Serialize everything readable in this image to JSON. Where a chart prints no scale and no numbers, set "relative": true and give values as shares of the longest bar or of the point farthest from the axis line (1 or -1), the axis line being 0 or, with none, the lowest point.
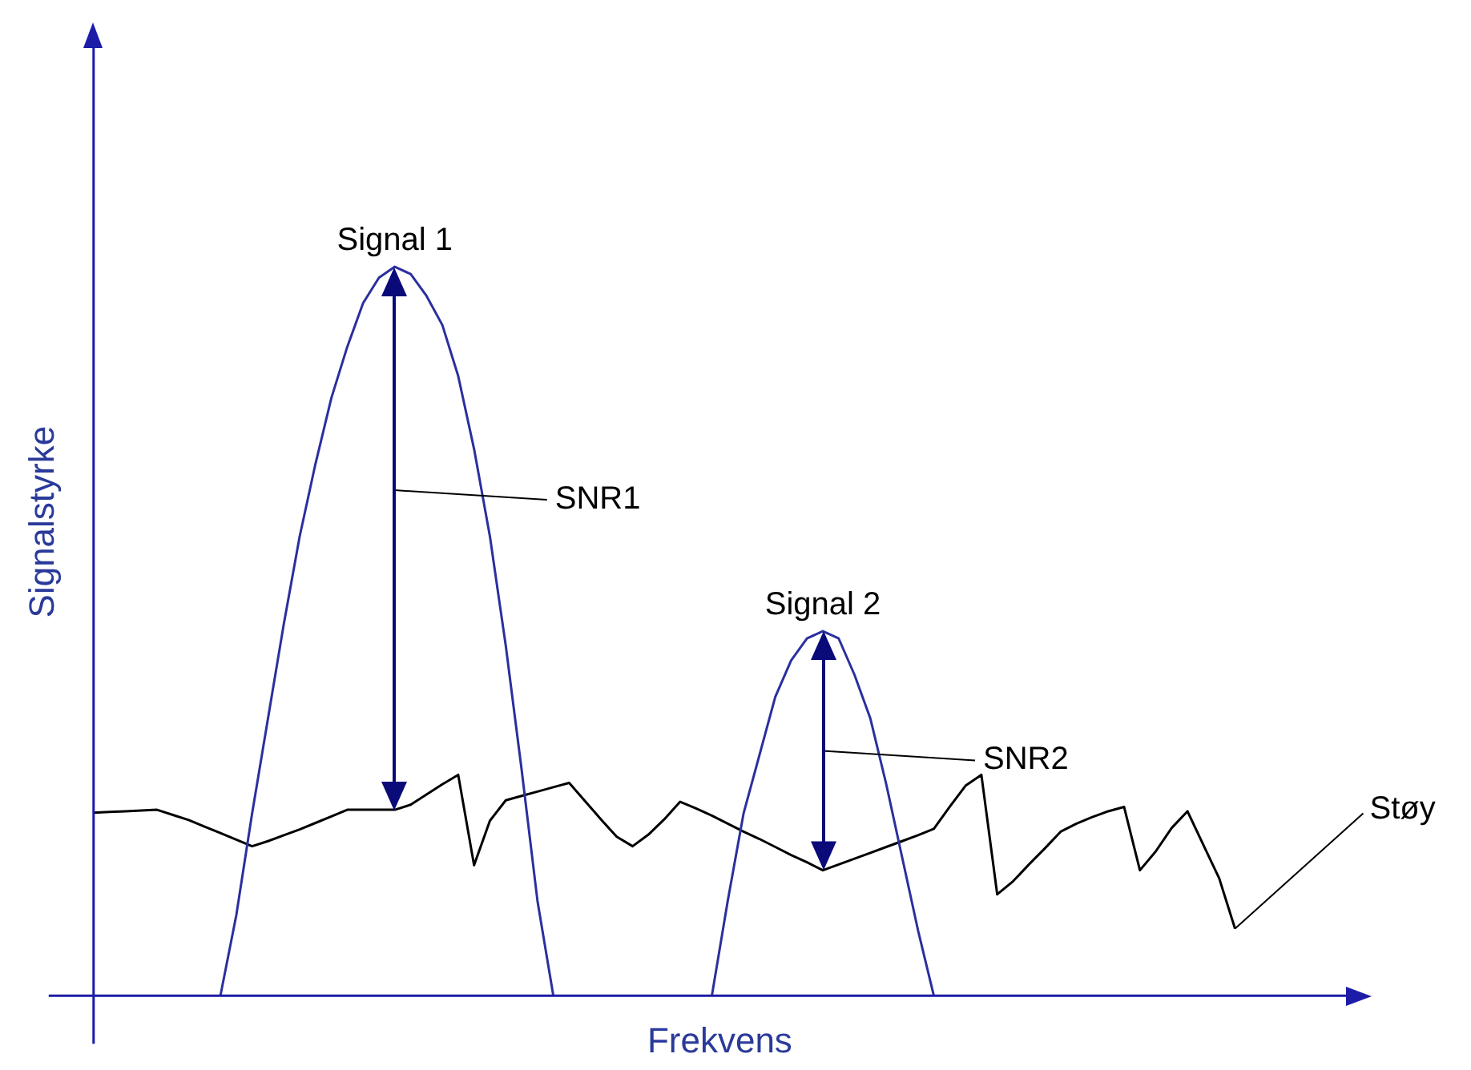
{
  "chart_data": {
    "type": "line",
    "relative": true,
    "xlabel": "Frekvens",
    "ylabel": "Signalstyrke",
    "legend": false,
    "grid": false,
    "marker": "none",
    "line_style": "solid",
    "categories": [
      null,
      null,
      null,
      null,
      null,
      null,
      null,
      null,
      null,
      null,
      null,
      null,
      null,
      null,
      null,
      null,
      null,
      null,
      null,
      null,
      null,
      null,
      null,
      null,
      null,
      null,
      null,
      null,
      null,
      null,
      null,
      null,
      null,
      null,
      null,
      null,
      null,
      null,
      null,
      null,
      null,
      null,
      null,
      null,
      null,
      null,
      null,
      null,
      null,
      null,
      null,
      null,
      null,
      null,
      null,
      null,
      null,
      null,
      null,
      null,
      null,
      null,
      null,
      null,
      null,
      null,
      null,
      null,
      null,
      null,
      null,
      null,
      null,
      null,
      null,
      null,
      null,
      null,
      null,
      null
    ],
    "series": [
      {
        "color": "#2b2f9e",
        "values": [
          null,
          null,
          null,
          null,
          null,
          null,
          null,
          null,
          0,
          0.11,
          0.25,
          0.38,
          0.51,
          0.63,
          0.73,
          0.82,
          0.89,
          0.95,
          0.985,
          1,
          0.99,
          0.96,
          0.92,
          0.85,
          0.75,
          0.63,
          0.48,
          0.31,
          0.13,
          0,
          null,
          null,
          null,
          null,
          null,
          null,
          null,
          null,
          null,
          null,
          null,
          null,
          null,
          null,
          null,
          null,
          null,
          null,
          null,
          null,
          null,
          null,
          null,
          null,
          null,
          null,
          null,
          null,
          null,
          null,
          null,
          null,
          null,
          null,
          null,
          null,
          null,
          null,
          null,
          null,
          null,
          null,
          null,
          null,
          null,
          null,
          null,
          null,
          null,
          null
        ]
      },
      {
        "color": "#2b2f9e",
        "values": [
          null,
          null,
          null,
          null,
          null,
          null,
          null,
          null,
          null,
          null,
          null,
          null,
          null,
          null,
          null,
          null,
          null,
          null,
          null,
          null,
          null,
          null,
          null,
          null,
          null,
          null,
          null,
          null,
          null,
          null,
          null,
          null,
          null,
          null,
          null,
          null,
          null,
          null,
          null,
          0,
          0.13,
          0.25,
          0.33,
          0.41,
          0.46,
          0.49,
          0.5,
          0.49,
          0.44,
          0.38,
          0.29,
          0.19,
          0.09,
          0,
          null,
          null,
          null,
          null,
          null,
          null,
          null,
          null,
          null,
          null,
          null,
          null,
          null,
          null,
          null,
          null,
          null,
          null,
          null,
          null,
          null,
          null,
          null,
          null,
          null,
          null
        ]
      },
      {
        "color": "#000000",
        "values": [
          0.251,
          0.252,
          0.253,
          0.254,
          0.255,
          0.248,
          0.241,
          0.232,
          0.223,
          0.214,
          0.205,
          0.212,
          0.22,
          0.228,
          0.237,
          0.246,
          0.255,
          0.255,
          0.255,
          0.255,
          0.262,
          0.276,
          0.29,
          0.303,
          0.179,
          0.24,
          0.268,
          0.274,
          0.28,
          0.286,
          0.292,
          0.267,
          0.242,
          0.218,
          0.205,
          0.221,
          0.242,
          0.266,
          0.257,
          0.247,
          0.236,
          0.225,
          0.215,
          0.204,
          0.193,
          0.183,
          0.172,
          0.18,
          0.188,
          0.196,
          0.204,
          0.212,
          0.22,
          0.229,
          0.259,
          0.288,
          0.303,
          0.139,
          0.157,
          0.18,
          0.202,
          0.225,
          0.236,
          0.245,
          0.253,
          0.259,
          0.172,
          0.198,
          0.23,
          0.253,
          0.207,
          0.161,
          0.092,
          null,
          null,
          null,
          null,
          null,
          null,
          null
        ]
      }
    ],
    "annotations": [
      "Signal 1",
      "SNR1",
      "Signal 2",
      "SNR2",
      "Støy"
    ]
  }
}
